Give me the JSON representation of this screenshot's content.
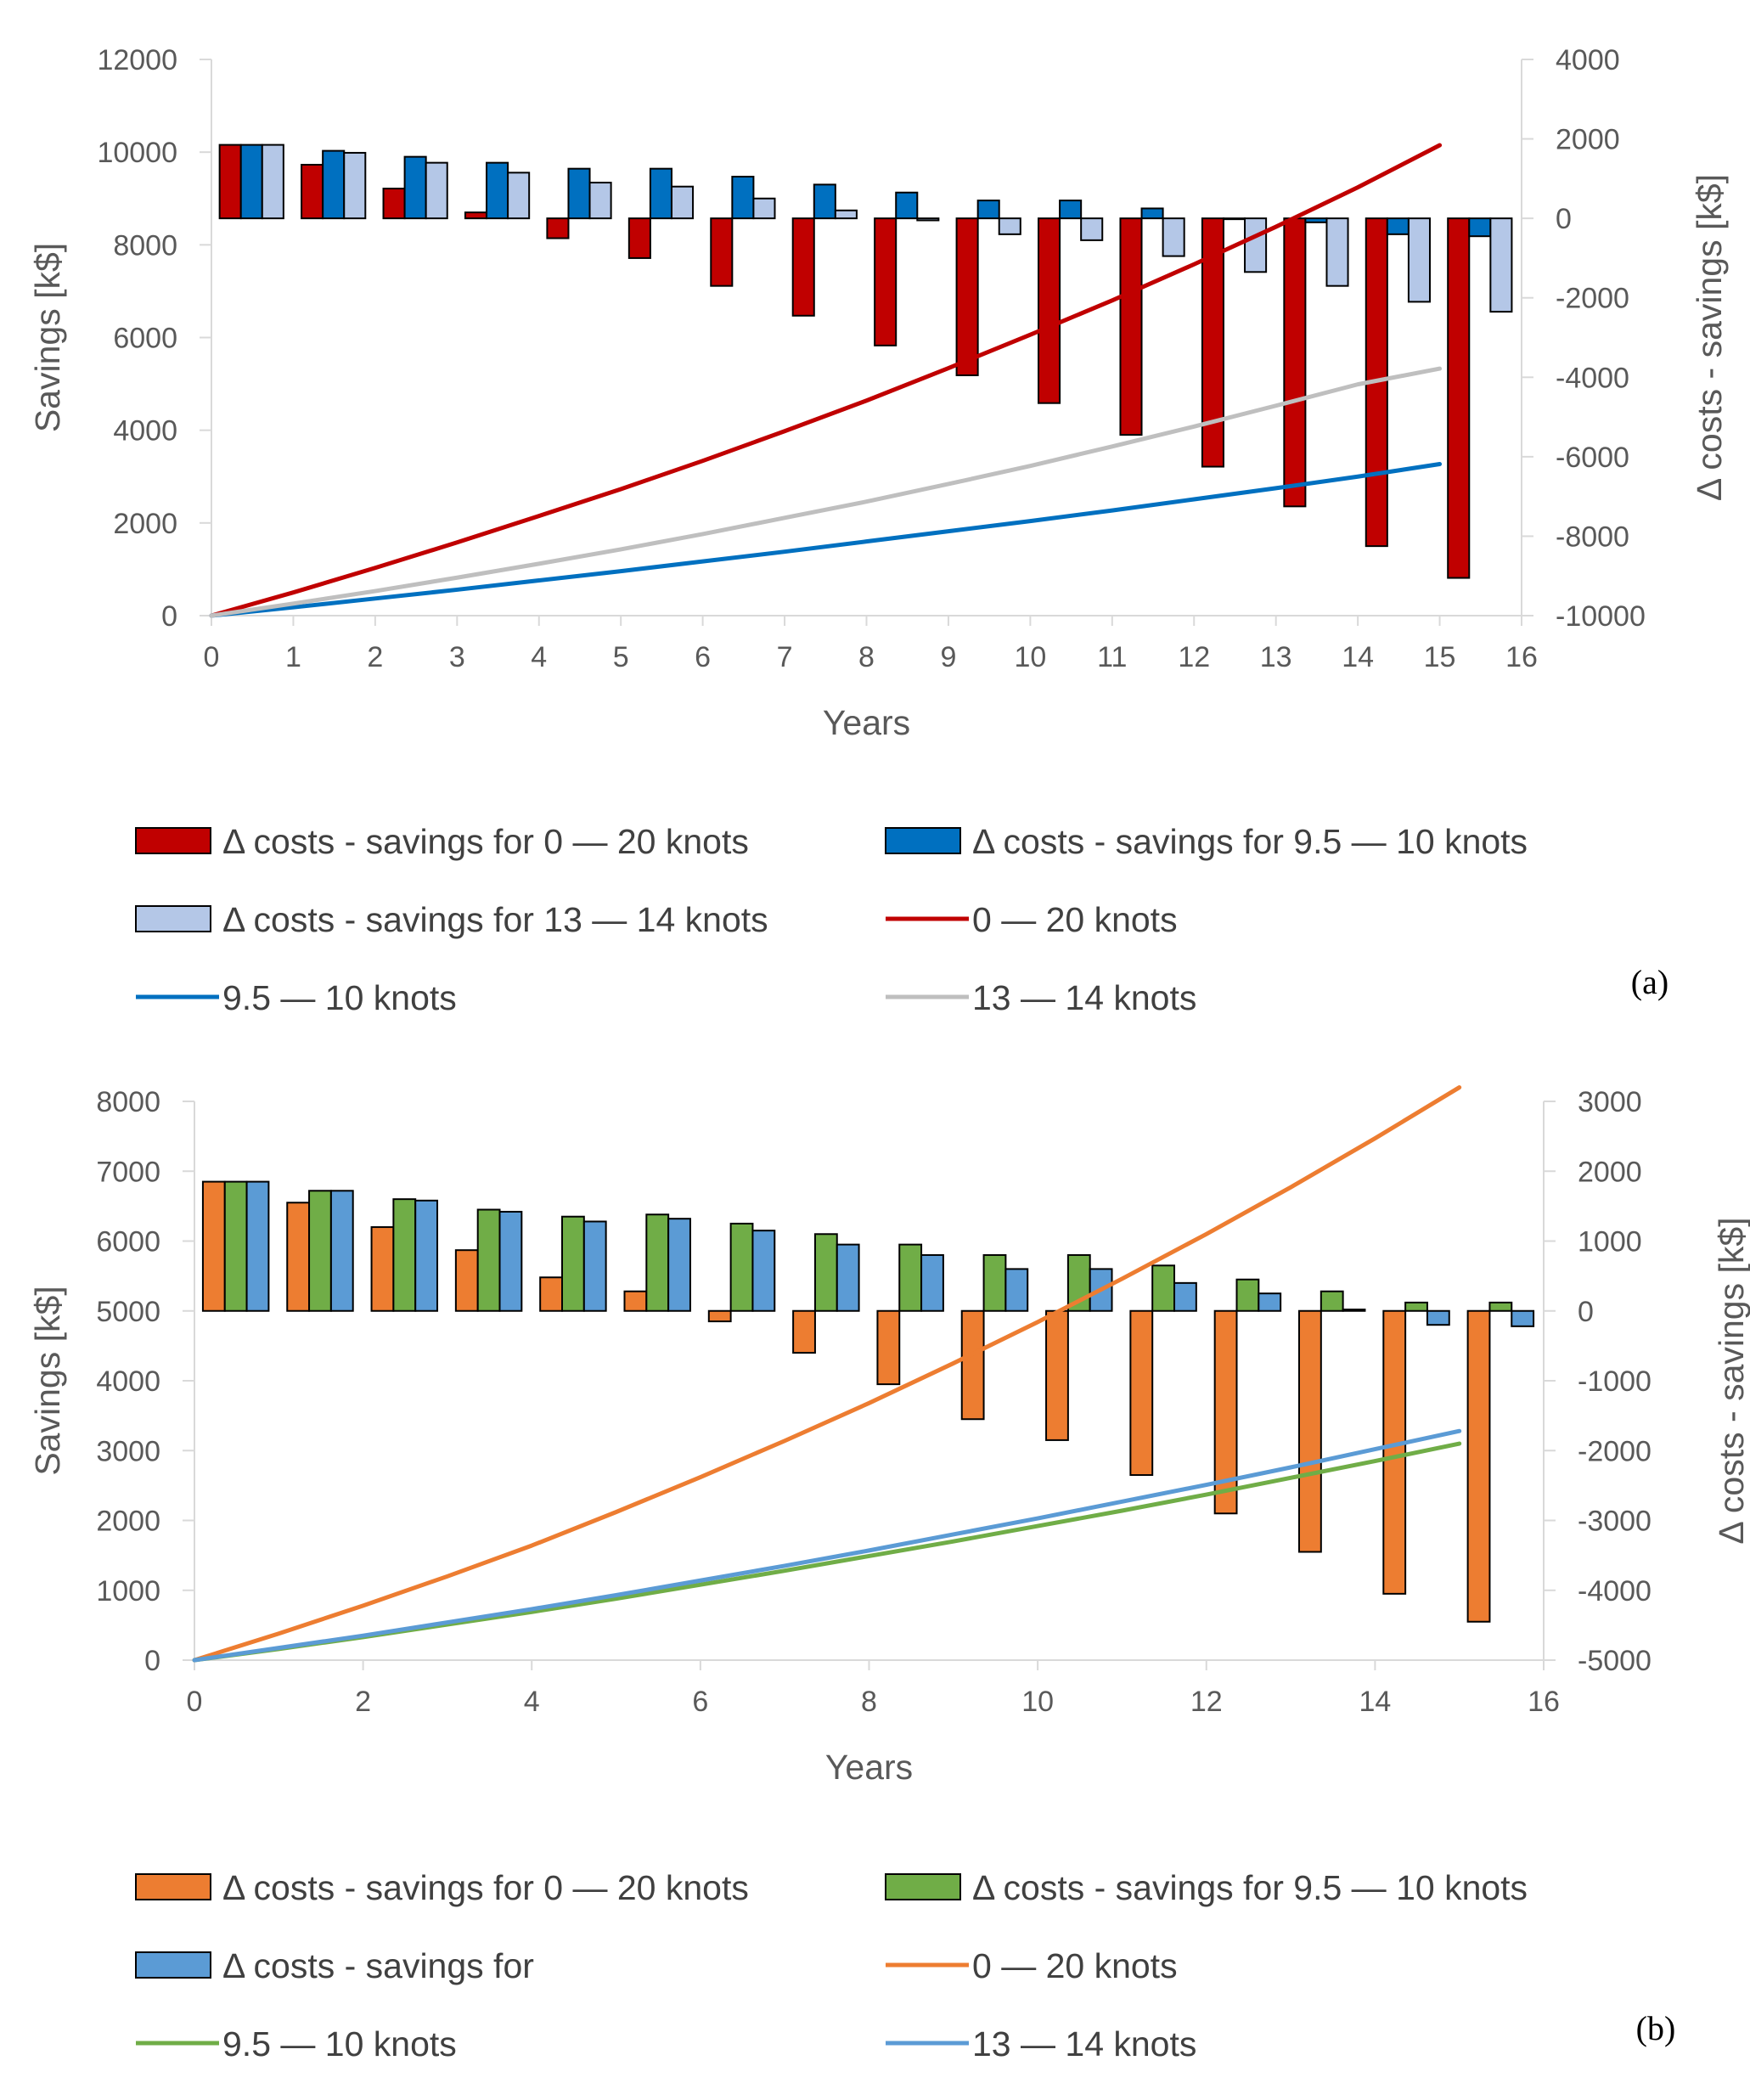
{
  "chart_data": [
    {
      "panel_label": "(a)",
      "type": "bar+line",
      "xlabel": "Years",
      "ylabel": "Savings [k$]",
      "y2label": "Δ costs - savings [k$]",
      "xlim": [
        0,
        16
      ],
      "xticks": [
        "0",
        "1",
        "2",
        "3",
        "4",
        "5",
        "6",
        "7",
        "8",
        "9",
        "10",
        "11",
        "12",
        "13",
        "14",
        "15",
        "16"
      ],
      "ylim": [
        0,
        12000
      ],
      "yticks": [
        "0",
        "2000",
        "4000",
        "6000",
        "8000",
        "10000",
        "12000"
      ],
      "y2lim": [
        -10000,
        4000
      ],
      "y2ticks": [
        "-10000",
        "-8000",
        "-6000",
        "-4000",
        "-2000",
        "0",
        "2000",
        "4000"
      ],
      "bar_series": [
        {
          "name": "Δ costs - savings for 0 — 20 knots",
          "color": "#C00000",
          "values": [
            1850,
            1350,
            750,
            150,
            -500,
            -1000,
            -1700,
            -2450,
            -3200,
            -3950,
            -4650,
            -5450,
            -6250,
            -7250,
            -8250,
            -9050
          ]
        },
        {
          "name": "Δ costs - savings for 9.5 — 10 knots",
          "color": "#0070C0",
          "values": [
            1850,
            1700,
            1550,
            1400,
            1250,
            1250,
            1050,
            850,
            650,
            450,
            450,
            250,
            0,
            -100,
            -400,
            -450
          ]
        },
        {
          "name": "Δ costs - savings for 13 — 14 knots",
          "color": "#B4C7E7",
          "values": [
            1850,
            1650,
            1400,
            1150,
            900,
            800,
            500,
            200,
            -50,
            -400,
            -550,
            -950,
            -1350,
            -1700,
            -2100,
            -2350
          ]
        }
      ],
      "line_series": [
        {
          "name": "0 — 20 knots",
          "color": "#C00000",
          "x": [
            0,
            1,
            2,
            3,
            4,
            5,
            6,
            7,
            8,
            9,
            10,
            11,
            12,
            13,
            14,
            15
          ],
          "values": [
            0,
            500,
            1030,
            1580,
            2150,
            2730,
            3340,
            3980,
            4640,
            5340,
            6060,
            6800,
            7580,
            8390,
            9240,
            10150
          ]
        },
        {
          "name": "9.5 — 10 knots",
          "color": "#0070C0",
          "x": [
            0,
            1,
            2,
            3,
            4,
            5,
            6,
            7,
            8,
            9,
            10,
            11,
            12,
            13,
            14,
            15
          ],
          "values": [
            0,
            180,
            370,
            560,
            760,
            960,
            1170,
            1380,
            1600,
            1820,
            2040,
            2270,
            2510,
            2750,
            3000,
            3270
          ]
        },
        {
          "name": "13 — 14 knots",
          "color": "#BFBFBF",
          "x": [
            0,
            1,
            2,
            3,
            4,
            5,
            6,
            7,
            8,
            9,
            10,
            11,
            12,
            13,
            14,
            15
          ],
          "values": [
            0,
            260,
            530,
            820,
            1120,
            1430,
            1760,
            2110,
            2460,
            2840,
            3230,
            3650,
            4080,
            4530,
            4990,
            5330
          ]
        }
      ],
      "legend": [
        {
          "kind": "bar",
          "label": "Δ costs - savings for 0 — 20 knots",
          "color": "#C00000"
        },
        {
          "kind": "bar",
          "label": "Δ costs - savings for 9.5 — 10 knots",
          "color": "#0070C0"
        },
        {
          "kind": "bar",
          "label": "Δ costs - savings for 13 — 14 knots",
          "color": "#B4C7E7"
        },
        {
          "kind": "line",
          "label": "0 — 20 knots",
          "color": "#C00000"
        },
        {
          "kind": "line",
          "label": "9.5 — 10 knots",
          "color": "#0070C0"
        },
        {
          "kind": "line",
          "label": "13 — 14 knots",
          "color": "#BFBFBF"
        }
      ]
    },
    {
      "panel_label": "(b)",
      "type": "bar+line",
      "xlabel": "Years",
      "ylabel": "Savings [k$]",
      "y2label": "Δ costs - savings [k$]",
      "xlim": [
        0,
        16
      ],
      "xticks": [
        "0",
        "2",
        "4",
        "6",
        "8",
        "10",
        "12",
        "14",
        "16"
      ],
      "ylim": [
        0,
        8000
      ],
      "yticks": [
        "0",
        "1000",
        "2000",
        "3000",
        "4000",
        "5000",
        "6000",
        "7000",
        "8000"
      ],
      "y2lim": [
        -5000,
        3000
      ],
      "y2ticks": [
        "-5000",
        "-4000",
        "-3000",
        "-2000",
        "-1000",
        "0",
        "1000",
        "2000",
        "3000"
      ],
      "bar_series": [
        {
          "name": "Δ costs - savings for 0 — 20 knots",
          "color": "#ED7D31",
          "values": [
            1850,
            1550,
            1200,
            870,
            480,
            280,
            -150,
            -600,
            -1050,
            -1550,
            -1850,
            -2350,
            -2900,
            -3450,
            -4050,
            -4450
          ]
        },
        {
          "name": "Δ costs - savings for 9.5 — 10 knots",
          "color": "#70AD47",
          "values": [
            1850,
            1720,
            1600,
            1450,
            1350,
            1380,
            1250,
            1100,
            950,
            800,
            800,
            650,
            450,
            280,
            120,
            120
          ]
        },
        {
          "name": "Δ costs - savings for",
          "color": "#5B9BD5",
          "values": [
            1850,
            1720,
            1580,
            1420,
            1280,
            1320,
            1150,
            950,
            800,
            600,
            600,
            400,
            250,
            20,
            -200,
            -220
          ]
        }
      ],
      "line_series": [
        {
          "name": "0 — 20 knots",
          "color": "#ED7D31",
          "x": [
            0,
            1,
            2,
            3,
            4,
            5,
            6,
            7,
            8,
            9,
            10,
            11,
            12,
            13,
            14,
            15
          ],
          "values": [
            0,
            380,
            780,
            1200,
            1640,
            2120,
            2620,
            3140,
            3680,
            4250,
            4840,
            5460,
            6100,
            6770,
            7470,
            8200
          ]
        },
        {
          "name": "9.5 — 10 knots",
          "color": "#70AD47",
          "x": [
            0,
            1,
            2,
            3,
            4,
            5,
            6,
            7,
            8,
            9,
            10,
            11,
            12,
            13,
            14,
            15
          ],
          "values": [
            0,
            160,
            330,
            510,
            690,
            880,
            1080,
            1280,
            1490,
            1700,
            1920,
            2140,
            2370,
            2610,
            2850,
            3100
          ]
        },
        {
          "name": "13 — 14 knots",
          "color": "#5B9BD5",
          "x": [
            0,
            1,
            2,
            3,
            4,
            5,
            6,
            7,
            8,
            9,
            10,
            11,
            12,
            13,
            14,
            15
          ],
          "values": [
            0,
            175,
            350,
            540,
            730,
            930,
            1140,
            1350,
            1570,
            1800,
            2030,
            2270,
            2510,
            2760,
            3020,
            3280
          ]
        }
      ],
      "legend": [
        {
          "kind": "bar",
          "label": "Δ costs - savings for 0 — 20 knots",
          "color": "#ED7D31"
        },
        {
          "kind": "bar",
          "label": "Δ costs - savings for 9.5 — 10 knots",
          "color": "#70AD47"
        },
        {
          "kind": "bar",
          "label": "Δ costs - savings for",
          "color": "#5B9BD5"
        },
        {
          "kind": "line",
          "label": "0 — 20 knots",
          "color": "#ED7D31"
        },
        {
          "kind": "line",
          "label": "9.5 — 10 knots",
          "color": "#70AD47"
        },
        {
          "kind": "line",
          "label": "13 — 14 knots",
          "color": "#5B9BD5"
        }
      ]
    }
  ]
}
